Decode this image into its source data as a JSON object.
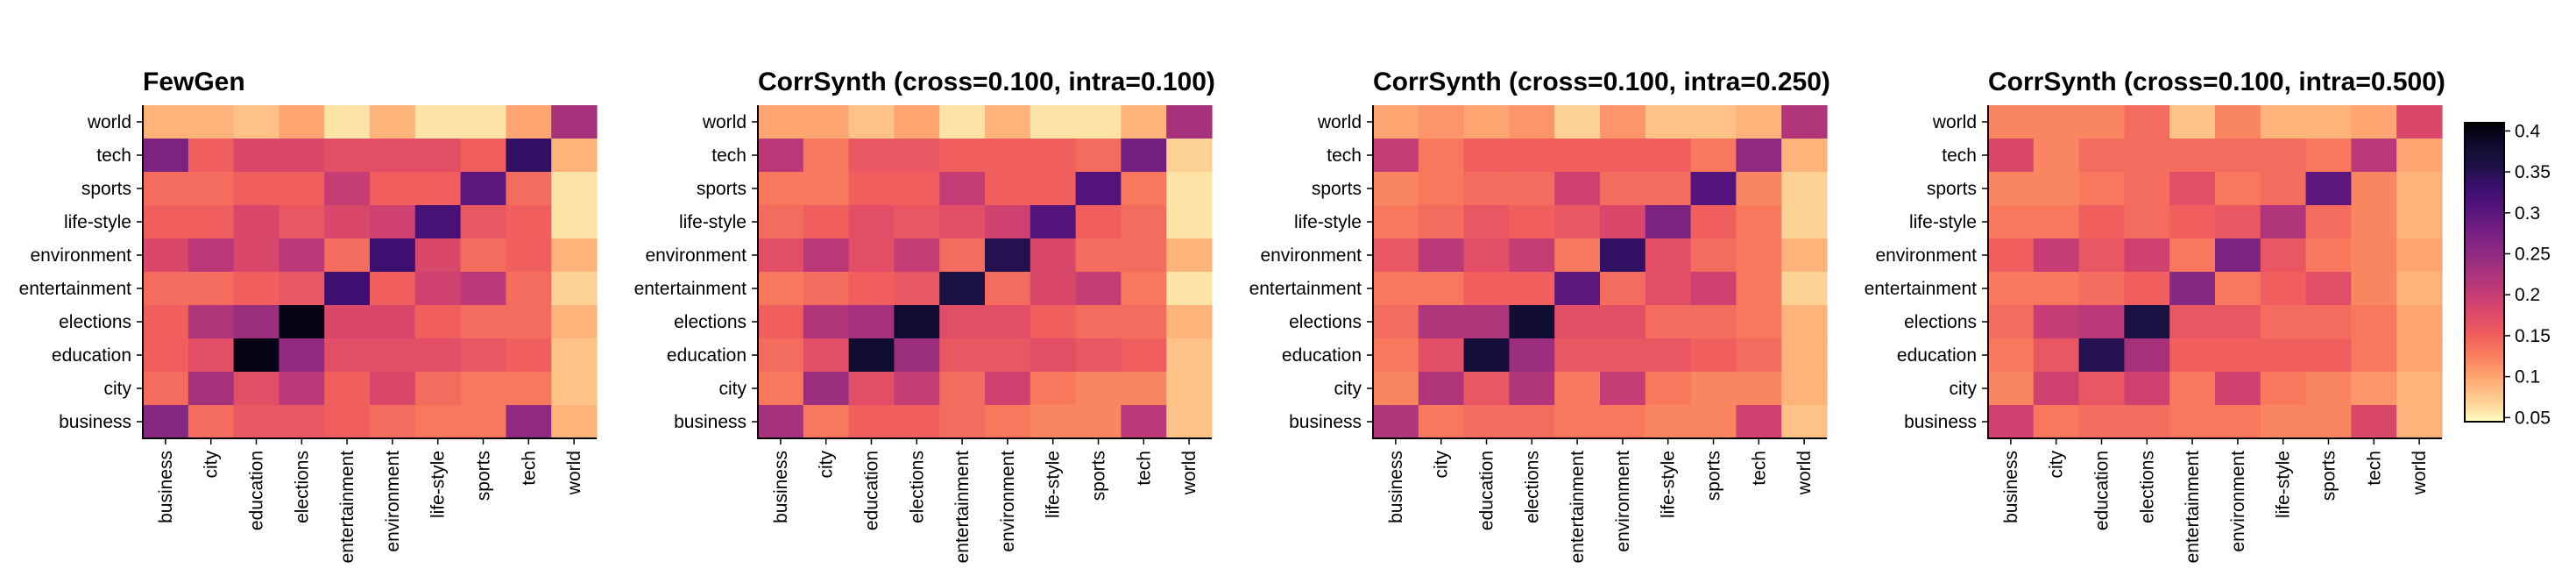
{
  "chart_data": [
    {
      "type": "heatmap",
      "title": "FewGen",
      "categories": [
        "business",
        "city",
        "education",
        "elections",
        "entertainment",
        "environment",
        "life-style",
        "sports",
        "tech",
        "world"
      ],
      "rows": [
        "world",
        "tech",
        "sports",
        "life-style",
        "environment",
        "entertainment",
        "elections",
        "education",
        "city",
        "business"
      ],
      "values": [
        [
          0.09,
          0.09,
          0.08,
          0.1,
          0.06,
          0.09,
          0.06,
          0.06,
          0.1,
          0.23
        ],
        [
          0.27,
          0.15,
          0.18,
          0.18,
          0.17,
          0.17,
          0.17,
          0.15,
          0.34,
          0.09
        ],
        [
          0.14,
          0.14,
          0.15,
          0.15,
          0.2,
          0.15,
          0.15,
          0.3,
          0.14,
          0.06
        ],
        [
          0.15,
          0.15,
          0.18,
          0.16,
          0.18,
          0.19,
          0.32,
          0.16,
          0.15,
          0.06
        ],
        [
          0.18,
          0.21,
          0.18,
          0.21,
          0.14,
          0.33,
          0.18,
          0.14,
          0.15,
          0.09
        ],
        [
          0.14,
          0.14,
          0.15,
          0.16,
          0.33,
          0.15,
          0.19,
          0.21,
          0.14,
          0.07
        ],
        [
          0.15,
          0.22,
          0.24,
          0.4,
          0.18,
          0.18,
          0.15,
          0.14,
          0.14,
          0.09
        ],
        [
          0.15,
          0.17,
          0.4,
          0.25,
          0.17,
          0.17,
          0.17,
          0.16,
          0.15,
          0.08
        ],
        [
          0.14,
          0.23,
          0.17,
          0.21,
          0.15,
          0.18,
          0.14,
          0.13,
          0.13,
          0.08
        ],
        [
          0.26,
          0.14,
          0.16,
          0.16,
          0.15,
          0.14,
          0.13,
          0.13,
          0.25,
          0.09
        ]
      ]
    },
    {
      "type": "heatmap",
      "title": "CorrSynth (cross=0.100, intra=0.100)",
      "categories": [
        "business",
        "city",
        "education",
        "elections",
        "entertainment",
        "environment",
        "life-style",
        "sports",
        "tech",
        "world"
      ],
      "rows": [
        "world",
        "tech",
        "sports",
        "life-style",
        "environment",
        "entertainment",
        "elections",
        "education",
        "city",
        "business"
      ],
      "values": [
        [
          0.1,
          0.1,
          0.08,
          0.1,
          0.06,
          0.09,
          0.06,
          0.06,
          0.09,
          0.23
        ],
        [
          0.21,
          0.13,
          0.16,
          0.16,
          0.15,
          0.15,
          0.15,
          0.14,
          0.28,
          0.07
        ],
        [
          0.13,
          0.13,
          0.15,
          0.15,
          0.2,
          0.15,
          0.15,
          0.31,
          0.13,
          0.06
        ],
        [
          0.14,
          0.15,
          0.17,
          0.16,
          0.17,
          0.19,
          0.31,
          0.15,
          0.14,
          0.06
        ],
        [
          0.17,
          0.21,
          0.17,
          0.2,
          0.14,
          0.35,
          0.18,
          0.14,
          0.14,
          0.09
        ],
        [
          0.13,
          0.14,
          0.15,
          0.16,
          0.36,
          0.14,
          0.18,
          0.2,
          0.13,
          0.06
        ],
        [
          0.15,
          0.22,
          0.23,
          0.38,
          0.17,
          0.17,
          0.15,
          0.14,
          0.14,
          0.09
        ],
        [
          0.14,
          0.17,
          0.38,
          0.24,
          0.16,
          0.16,
          0.17,
          0.16,
          0.15,
          0.08
        ],
        [
          0.13,
          0.24,
          0.17,
          0.2,
          0.14,
          0.19,
          0.13,
          0.12,
          0.12,
          0.08
        ],
        [
          0.23,
          0.13,
          0.15,
          0.15,
          0.14,
          0.13,
          0.12,
          0.12,
          0.21,
          0.08
        ]
      ]
    },
    {
      "type": "heatmap",
      "title": "CorrSynth (cross=0.100, intra=0.250)",
      "categories": [
        "business",
        "city",
        "education",
        "elections",
        "entertainment",
        "environment",
        "life-style",
        "sports",
        "tech",
        "world"
      ],
      "rows": [
        "world",
        "tech",
        "sports",
        "life-style",
        "environment",
        "entertainment",
        "elections",
        "education",
        "city",
        "business"
      ],
      "values": [
        [
          0.1,
          0.11,
          0.1,
          0.11,
          0.07,
          0.11,
          0.08,
          0.08,
          0.09,
          0.22
        ],
        [
          0.2,
          0.13,
          0.15,
          0.15,
          0.15,
          0.15,
          0.15,
          0.13,
          0.25,
          0.09
        ],
        [
          0.12,
          0.13,
          0.14,
          0.14,
          0.19,
          0.14,
          0.14,
          0.31,
          0.12,
          0.07
        ],
        [
          0.13,
          0.14,
          0.16,
          0.15,
          0.16,
          0.18,
          0.27,
          0.15,
          0.13,
          0.07
        ],
        [
          0.16,
          0.21,
          0.17,
          0.2,
          0.13,
          0.34,
          0.17,
          0.14,
          0.13,
          0.09
        ],
        [
          0.13,
          0.13,
          0.15,
          0.15,
          0.3,
          0.14,
          0.17,
          0.19,
          0.13,
          0.07
        ],
        [
          0.14,
          0.22,
          0.22,
          0.38,
          0.17,
          0.17,
          0.14,
          0.14,
          0.13,
          0.09
        ],
        [
          0.13,
          0.17,
          0.37,
          0.24,
          0.16,
          0.16,
          0.16,
          0.15,
          0.14,
          0.09
        ],
        [
          0.12,
          0.22,
          0.16,
          0.22,
          0.13,
          0.2,
          0.13,
          0.12,
          0.12,
          0.09
        ],
        [
          0.22,
          0.13,
          0.14,
          0.14,
          0.13,
          0.13,
          0.12,
          0.12,
          0.19,
          0.08
        ]
      ]
    },
    {
      "type": "heatmap",
      "title": "CorrSynth (cross=0.100, intra=0.500)",
      "categories": [
        "business",
        "city",
        "education",
        "elections",
        "entertainment",
        "environment",
        "life-style",
        "sports",
        "tech",
        "world"
      ],
      "rows": [
        "world",
        "tech",
        "sports",
        "life-style",
        "environment",
        "entertainment",
        "elections",
        "education",
        "city",
        "business"
      ],
      "values": [
        [
          0.12,
          0.12,
          0.12,
          0.14,
          0.08,
          0.12,
          0.09,
          0.09,
          0.1,
          0.18
        ],
        [
          0.18,
          0.12,
          0.14,
          0.14,
          0.14,
          0.14,
          0.14,
          0.13,
          0.21,
          0.1
        ],
        [
          0.12,
          0.12,
          0.13,
          0.14,
          0.17,
          0.13,
          0.14,
          0.3,
          0.12,
          0.09
        ],
        [
          0.13,
          0.13,
          0.15,
          0.14,
          0.15,
          0.16,
          0.22,
          0.14,
          0.12,
          0.09
        ],
        [
          0.15,
          0.2,
          0.16,
          0.19,
          0.13,
          0.27,
          0.16,
          0.13,
          0.12,
          0.1
        ],
        [
          0.13,
          0.13,
          0.14,
          0.15,
          0.26,
          0.13,
          0.15,
          0.17,
          0.12,
          0.09
        ],
        [
          0.14,
          0.2,
          0.21,
          0.36,
          0.16,
          0.16,
          0.14,
          0.14,
          0.13,
          0.1
        ],
        [
          0.13,
          0.16,
          0.35,
          0.23,
          0.15,
          0.15,
          0.15,
          0.15,
          0.13,
          0.1
        ],
        [
          0.12,
          0.19,
          0.16,
          0.19,
          0.13,
          0.19,
          0.13,
          0.12,
          0.11,
          0.09
        ],
        [
          0.19,
          0.13,
          0.14,
          0.14,
          0.13,
          0.13,
          0.12,
          0.12,
          0.18,
          0.09
        ]
      ]
    }
  ],
  "colorbar": {
    "ticks": [
      "0.05",
      "0.1",
      "0.15",
      "0.2",
      "0.25",
      "0.3",
      "0.35",
      "0.4"
    ],
    "range": [
      0.045,
      0.41
    ],
    "colormap": "magma_r",
    "stops": [
      "#fcfdbf",
      "#fecf92",
      "#fea973",
      "#fa815f",
      "#f1605d",
      "#de4968",
      "#c43c75",
      "#a8327d",
      "#8c2981",
      "#721f81",
      "#56147d",
      "#3b0f70",
      "#1c1044",
      "#0f0b2e",
      "#000004"
    ]
  }
}
